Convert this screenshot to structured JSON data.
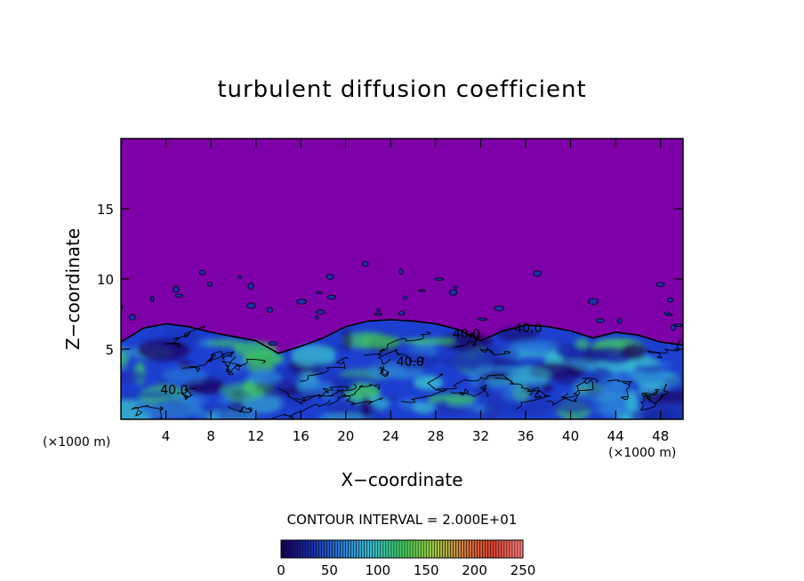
{
  "chart_data": {
    "type": "heatmap",
    "title": "turbulent diffusion coefficient",
    "xlabel": "X−coordinate",
    "ylabel": "Z−coordinate",
    "x_unit_left": "(×1000 m)",
    "x_unit_right": "(×1000 m)",
    "xlim": [
      0,
      50
    ],
    "ylim": [
      0,
      20
    ],
    "x_ticks": [
      4,
      8,
      12,
      16,
      20,
      24,
      28,
      32,
      36,
      40,
      44,
      48
    ],
    "y_ticks": [
      5,
      10,
      15
    ],
    "contour_interval_text": "CONTOUR INTERVAL = 2.000E+01",
    "contour_labels": [
      {
        "text": "40.0",
        "x": 3.5,
        "z": 1.8
      },
      {
        "text": "40.0",
        "x": 24.5,
        "z": 3.8
      },
      {
        "text": "40.0",
        "x": 29.5,
        "z": 5.8
      },
      {
        "text": "40.0",
        "x": 35.0,
        "z": 6.2
      }
    ],
    "colorbar": {
      "min": 0,
      "max": 250,
      "tick_values": [
        0,
        50,
        100,
        150,
        200,
        250
      ],
      "tick_labels": [
        "0",
        "50",
        "100",
        "150",
        "200",
        "250"
      ],
      "colors": [
        "#1a0060",
        "#1a2fb0",
        "#2a80d8",
        "#38c0d0",
        "#40d060",
        "#9ad040",
        "#d08040",
        "#e04030",
        "#ff8080"
      ]
    },
    "background_value_color": "#7e00a8",
    "turbulent_layer_top_profile": [
      [
        0,
        5.5
      ],
      [
        2,
        6.5
      ],
      [
        4,
        6.8
      ],
      [
        6,
        6.6
      ],
      [
        8,
        6.2
      ],
      [
        10,
        5.9
      ],
      [
        12,
        5.6
      ],
      [
        14,
        4.7
      ],
      [
        16,
        5.2
      ],
      [
        18,
        5.8
      ],
      [
        20,
        6.6
      ],
      [
        22,
        7.0
      ],
      [
        24,
        7.1
      ],
      [
        26,
        7.0
      ],
      [
        28,
        6.8
      ],
      [
        30,
        6.4
      ],
      [
        32,
        5.6
      ],
      [
        34,
        6.3
      ],
      [
        36,
        6.7
      ],
      [
        38,
        6.6
      ],
      [
        40,
        6.3
      ],
      [
        42,
        5.8
      ],
      [
        44,
        6.2
      ],
      [
        46,
        6.0
      ],
      [
        48,
        5.5
      ],
      [
        50,
        5.3
      ]
    ]
  }
}
